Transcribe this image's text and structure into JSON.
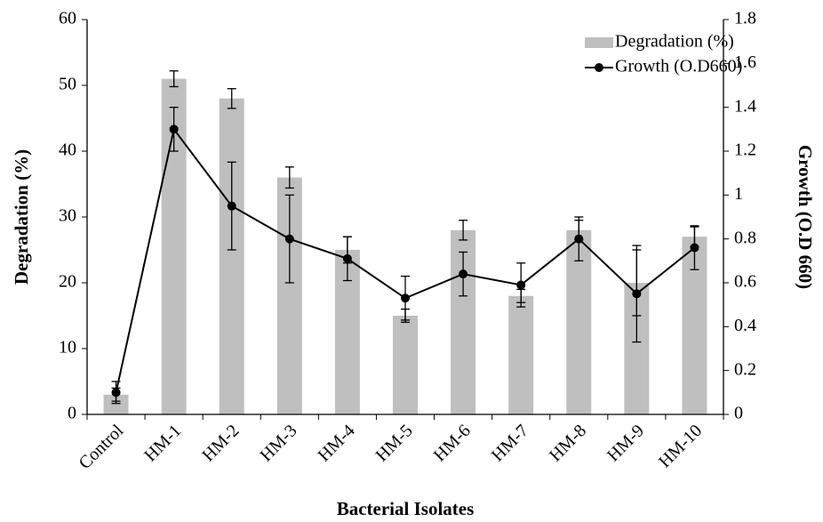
{
  "chart_data": {
    "type": "bar",
    "xlabel": "Bacterial Isolates",
    "ylabel": "Degradation (%)",
    "y2label": "Growth (O.D 660)",
    "categories": [
      "Control",
      "HM-1",
      "HM-2",
      "HM-3",
      "HM-4",
      "HM-5",
      "HM-6",
      "HM-7",
      "HM-8",
      "HM-9",
      "HM-10"
    ],
    "series": [
      {
        "name": "Degradation (%)",
        "type": "bar",
        "color": "#bfbfbf",
        "values": [
          3,
          51,
          48,
          36,
          25,
          15,
          28,
          18,
          28,
          20,
          27
        ],
        "errors": [
          1,
          1.2,
          1.5,
          1.6,
          2,
          1,
          1.5,
          1,
          1.5,
          5,
          1.5
        ]
      },
      {
        "name": "Growth (O.D660)",
        "type": "line",
        "axis": "y2",
        "color": "#000000",
        "values": [
          0.1,
          1.3,
          0.95,
          0.8,
          0.71,
          0.53,
          0.64,
          0.59,
          0.8,
          0.55,
          0.76
        ],
        "errors": [
          0.05,
          0.1,
          0.2,
          0.2,
          0.1,
          0.1,
          0.1,
          0.1,
          0.1,
          0.22,
          0.1
        ]
      }
    ],
    "ylim": [
      0,
      60
    ],
    "yticks": [
      0,
      10,
      20,
      30,
      40,
      50,
      60
    ],
    "y2lim": [
      0,
      1.8
    ],
    "y2ticks": [
      0,
      0.2,
      0.4,
      0.6,
      0.8,
      1,
      1.2,
      1.4,
      1.6,
      1.8
    ],
    "legend": "upper right"
  }
}
